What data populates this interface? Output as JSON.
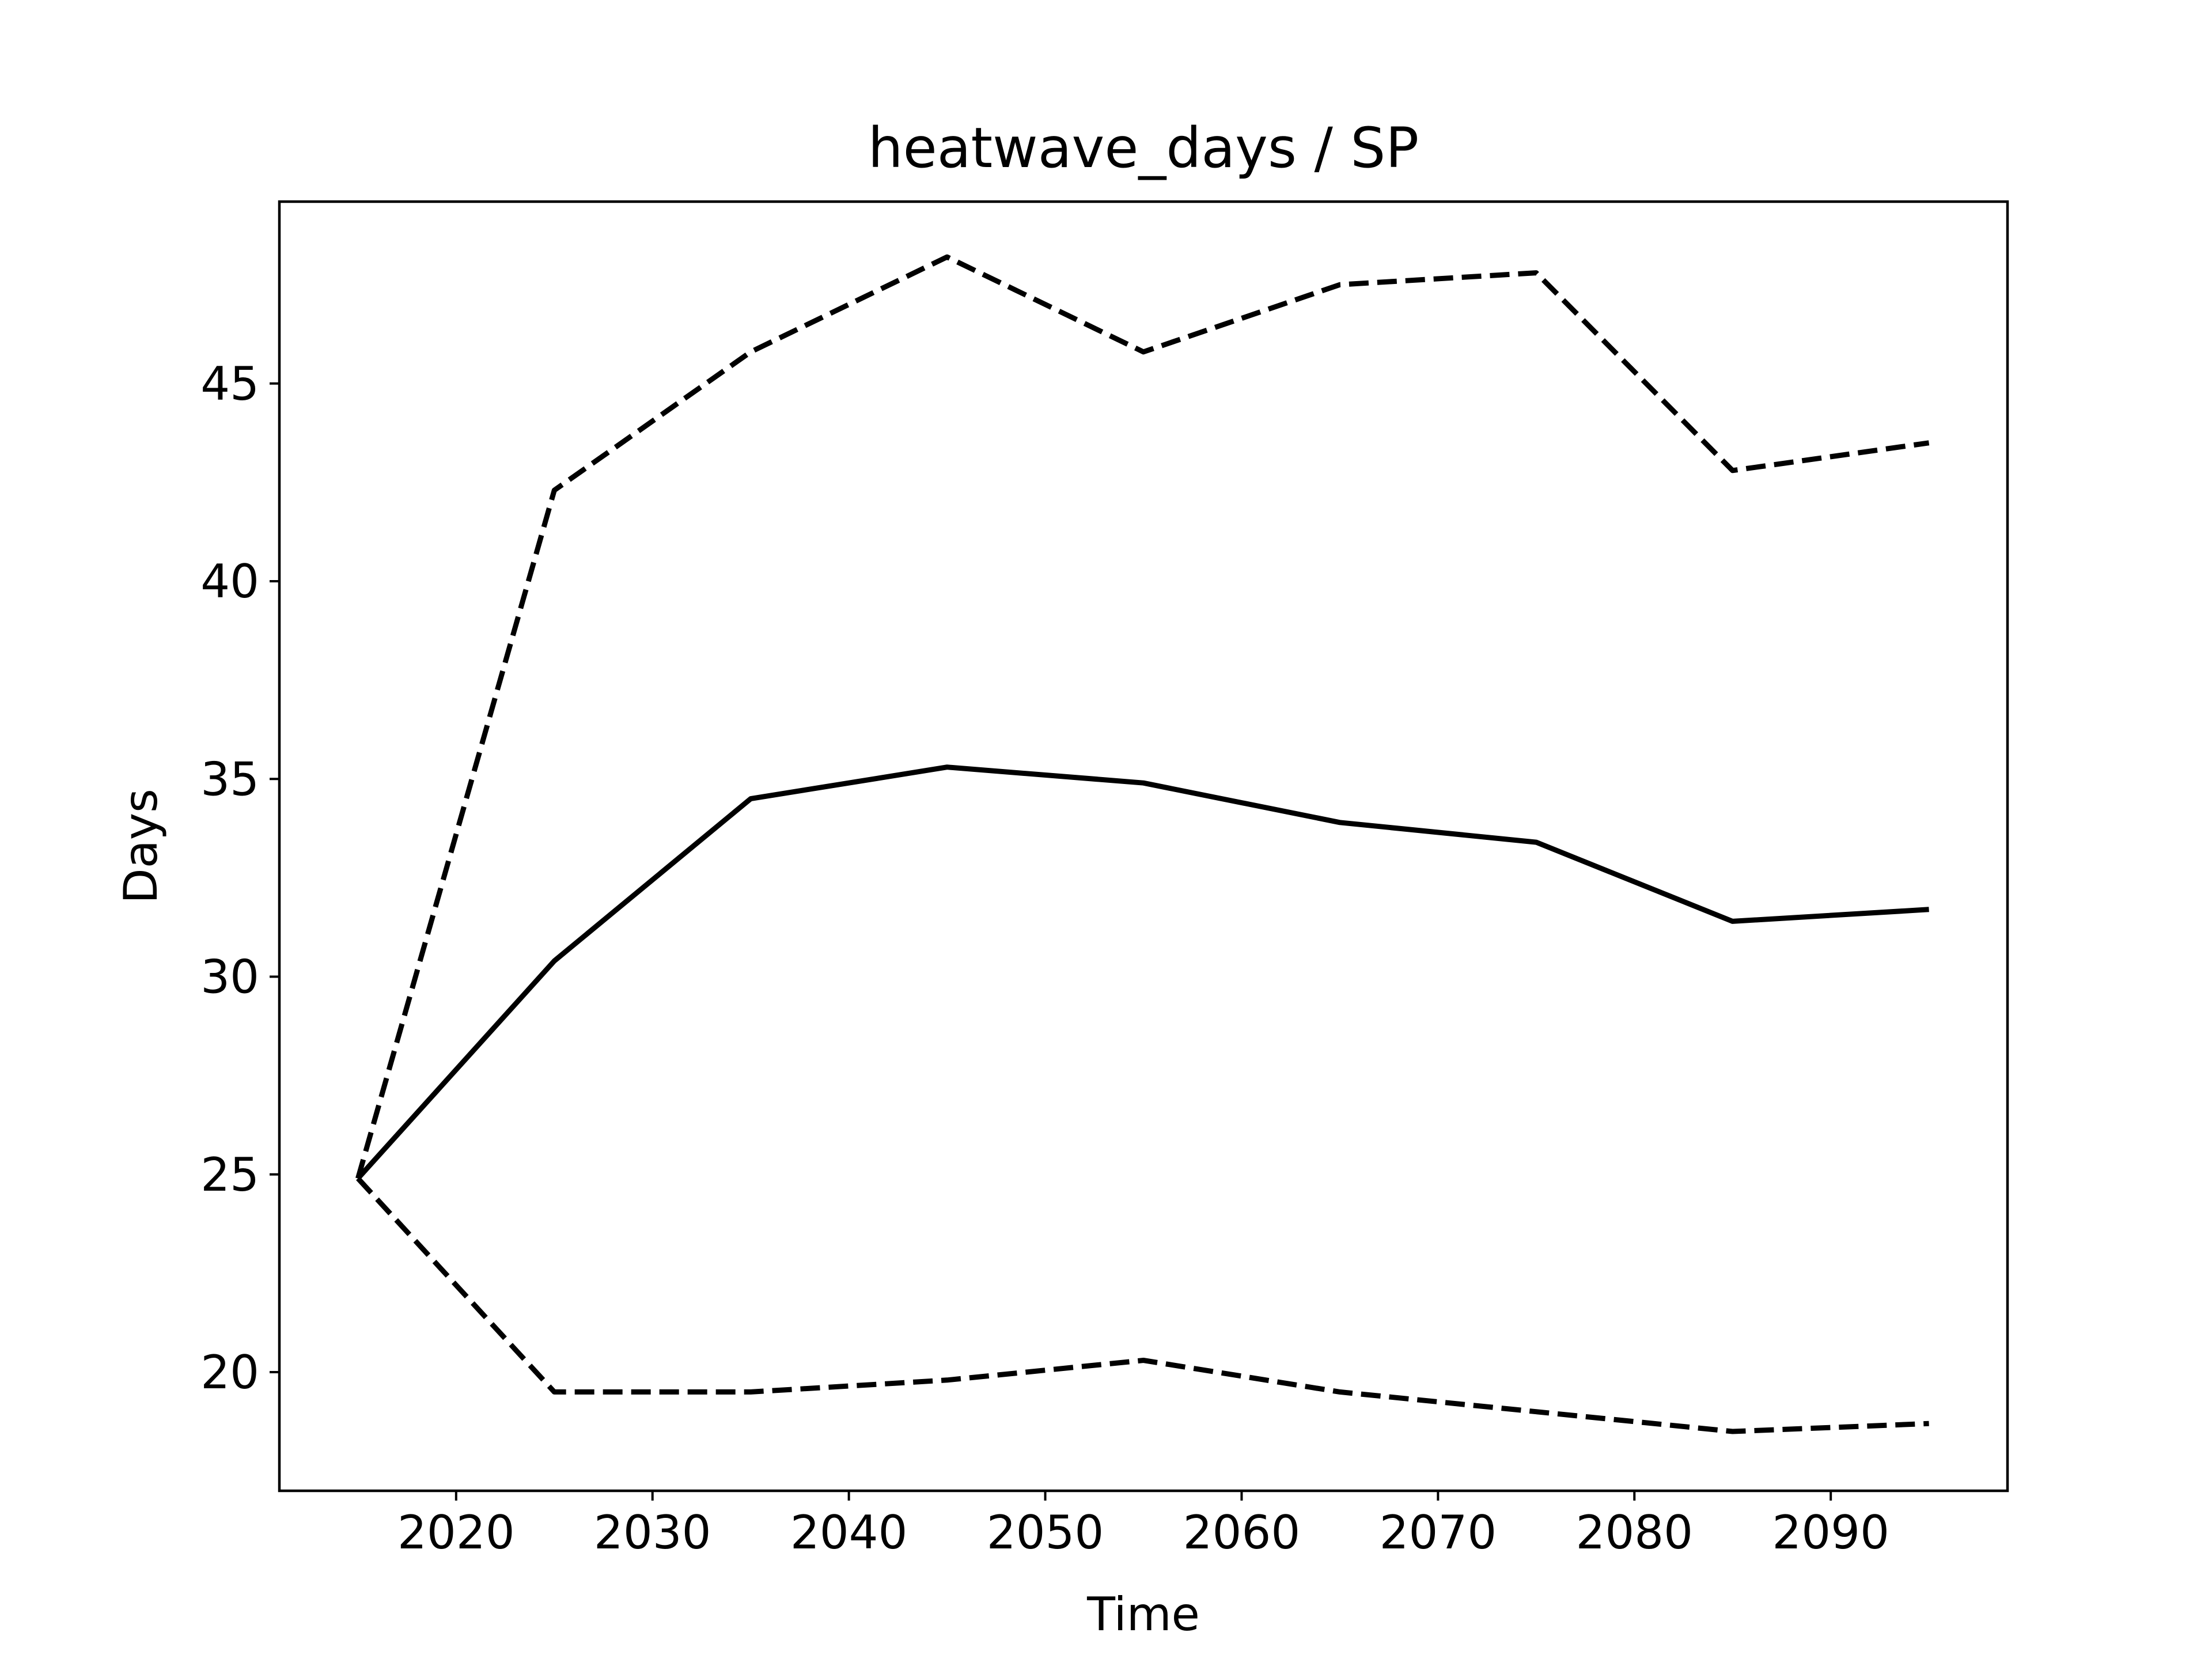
{
  "chart_data": {
    "type": "line",
    "title": "heatwave_days / SP",
    "xlabel": "Time",
    "ylabel": "Days",
    "xlim": [
      2011,
      2099
    ],
    "ylim": [
      17.0,
      49.6
    ],
    "xticks": [
      2020,
      2030,
      2040,
      2050,
      2060,
      2070,
      2080,
      2090
    ],
    "yticks": [
      20,
      25,
      30,
      35,
      40,
      45
    ],
    "grid": false,
    "x": [
      2015,
      2025,
      2035,
      2045,
      2055,
      2065,
      2075,
      2085,
      2095
    ],
    "series": [
      {
        "style": "solid",
        "color": "#000000",
        "values": [
          24.9,
          30.4,
          34.5,
          35.3,
          34.9,
          33.9,
          33.4,
          31.4,
          31.7
        ]
      },
      {
        "style": "dashed",
        "color": "#000000",
        "values": [
          24.9,
          42.3,
          45.8,
          48.2,
          45.8,
          47.5,
          47.8,
          42.8,
          43.5
        ]
      },
      {
        "style": "dashed",
        "color": "#000000",
        "values": [
          24.9,
          19.5,
          19.5,
          19.8,
          20.3,
          19.5,
          19.0,
          18.5,
          18.7
        ]
      }
    ]
  }
}
